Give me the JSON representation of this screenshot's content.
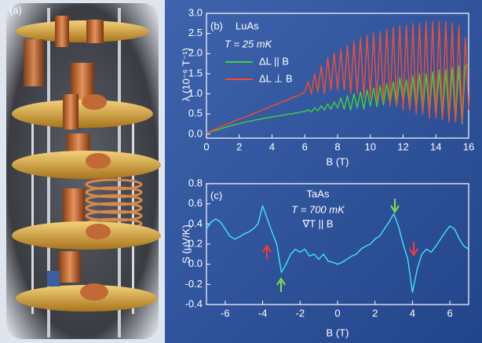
{
  "panel_label": "(a)",
  "chart_data": [
    {
      "type": "line",
      "panel_label": "(b)",
      "title": "LuAs",
      "subtitle": "T = 25 mK",
      "xlabel": "B (T)",
      "ylabel": "λ (10⁻⁶ T⁻¹)",
      "xlim": [
        0,
        16
      ],
      "ylim": [
        -0.1,
        3.0
      ],
      "xticks": [
        0,
        2,
        4,
        6,
        8,
        10,
        12,
        14,
        16
      ],
      "yticks": [
        {
          "value": 0,
          "label": "0.0"
        },
        0.5,
        {
          "value": 1,
          "label": "1.0"
        },
        1.5,
        {
          "value": 2,
          "label": "2.0"
        },
        2.5,
        {
          "value": 3,
          "label": "3.0"
        }
      ],
      "x": [
        0,
        0.2,
        0.4,
        0.6,
        0.8,
        1,
        1.2,
        1.4,
        1.6,
        1.8,
        2,
        2.2,
        2.4,
        2.6,
        2.8,
        3,
        3.2,
        3.4,
        3.6,
        3.8,
        4,
        4.2,
        4.4,
        4.6,
        4.8,
        5,
        5.2,
        5.4,
        5.6,
        5.8,
        6,
        6.2,
        6.4,
        6.6,
        6.8,
        7,
        7.2,
        7.4,
        7.6,
        7.8,
        8,
        8.2,
        8.4,
        8.6,
        8.8,
        9,
        9.2,
        9.4,
        9.6,
        9.8,
        10,
        10.2,
        10.4,
        10.6,
        10.8,
        11,
        11.2,
        11.4,
        11.6,
        11.8,
        12,
        12.2,
        12.4,
        12.6,
        12.8,
        13,
        13.2,
        13.4,
        13.6,
        13.8,
        14,
        14.2,
        14.4,
        14.6,
        14.8,
        15,
        15.2,
        15.4,
        15.6,
        15.8,
        16
      ],
      "series": [
        {
          "name": "ΔL || B",
          "color": "#3fd23a",
          "values": [
            0.02,
            0.05,
            0.08,
            0.1,
            0.12,
            0.15,
            0.17,
            0.2,
            0.22,
            0.24,
            0.26,
            0.28,
            0.3,
            0.32,
            0.33,
            0.35,
            0.37,
            0.38,
            0.4,
            0.41,
            0.43,
            0.44,
            0.45,
            0.47,
            0.48,
            0.5,
            0.5,
            0.52,
            0.53,
            0.55,
            0.56,
            0.6,
            0.55,
            0.65,
            0.58,
            0.7,
            0.6,
            0.75,
            0.62,
            0.8,
            0.65,
            0.9,
            0.62,
            0.95,
            0.6,
            1.0,
            0.65,
            1.05,
            0.62,
            1.1,
            0.7,
            1.15,
            0.68,
            1.2,
            0.72,
            1.25,
            0.75,
            1.3,
            0.7,
            1.4,
            0.8,
            1.35,
            0.65,
            1.45,
            0.6,
            1.5,
            0.55,
            1.5,
            0.5,
            1.55,
            0.45,
            1.6,
            0.4,
            1.6,
            0.35,
            1.65,
            0.3,
            1.7,
            0.25,
            1.7,
            1.75
          ]
        },
        {
          "name": "ΔL ⊥ B",
          "color": "#ff4a26",
          "values": [
            0.02,
            0.06,
            0.1,
            0.13,
            0.17,
            0.2,
            0.24,
            0.27,
            0.3,
            0.34,
            0.37,
            0.4,
            0.43,
            0.46,
            0.5,
            0.53,
            0.56,
            0.6,
            0.63,
            0.66,
            0.7,
            0.73,
            0.76,
            0.8,
            0.83,
            0.86,
            0.9,
            0.93,
            0.96,
            1.0,
            1.05,
            1.3,
            1.0,
            1.5,
            1.05,
            1.7,
            1.0,
            1.9,
            1.1,
            2.0,
            1.1,
            2.1,
            1.1,
            2.2,
            1.0,
            2.3,
            1.0,
            2.4,
            0.9,
            2.45,
            0.9,
            2.5,
            0.8,
            2.55,
            0.8,
            2.6,
            0.7,
            2.65,
            0.7,
            2.7,
            0.6,
            2.7,
            0.6,
            2.75,
            0.5,
            2.75,
            0.5,
            2.8,
            0.4,
            2.8,
            0.4,
            2.8,
            0.35,
            2.8,
            0.3,
            2.75,
            0.3,
            2.7,
            0.3,
            2.4,
            0.6
          ]
        }
      ]
    },
    {
      "type": "line",
      "panel_label": "(c)",
      "title": "TaAs",
      "subtitle": "T = 700 mK",
      "note": "∇T || B",
      "xlabel": "B (T)",
      "ylabel": "S (μV/K)",
      "xlim": [
        -7,
        7
      ],
      "ylim": [
        -0.4,
        0.8
      ],
      "xticks": [
        -6,
        -4,
        -2,
        0,
        2,
        4,
        6
      ],
      "yticks": [
        -0.4,
        -0.2,
        {
          "value": 0,
          "label": "0.0"
        },
        0.2,
        0.4,
        0.6,
        0.8
      ],
      "x": [
        -7,
        -6.75,
        -6.5,
        -6.25,
        -6,
        -5.75,
        -5.5,
        -5.25,
        -5,
        -4.75,
        -4.5,
        -4.25,
        -4,
        -3.75,
        -3.5,
        -3.25,
        -3,
        -2.75,
        -2.5,
        -2.25,
        -2,
        -1.75,
        -1.5,
        -1.25,
        -1,
        -0.75,
        -0.5,
        -0.25,
        0,
        0.25,
        0.5,
        0.75,
        1,
        1.25,
        1.5,
        1.75,
        2,
        2.25,
        2.5,
        2.75,
        3,
        3.25,
        3.5,
        3.75,
        4,
        4.25,
        4.5,
        4.75,
        5,
        5.25,
        5.5,
        5.75,
        6,
        6.25,
        6.5,
        6.75,
        7
      ],
      "series": [
        {
          "color": "#3fe6f5",
          "values": [
            0.35,
            0.42,
            0.45,
            0.42,
            0.35,
            0.28,
            0.25,
            0.27,
            0.3,
            0.32,
            0.35,
            0.4,
            0.58,
            0.45,
            0.32,
            0.2,
            -0.08,
            0.0,
            0.1,
            0.15,
            0.12,
            0.15,
            0.08,
            0.1,
            0.05,
            0.1,
            0.03,
            0.02,
            0.0,
            0.02,
            0.05,
            0.08,
            0.1,
            0.15,
            0.18,
            0.2,
            0.25,
            0.28,
            0.35,
            0.42,
            0.5,
            0.38,
            0.2,
            0.05,
            -0.28,
            -0.05,
            0.1,
            0.15,
            0.12,
            0.18,
            0.25,
            0.32,
            0.38,
            0.35,
            0.25,
            0.18,
            0.15
          ]
        }
      ]
    }
  ]
}
